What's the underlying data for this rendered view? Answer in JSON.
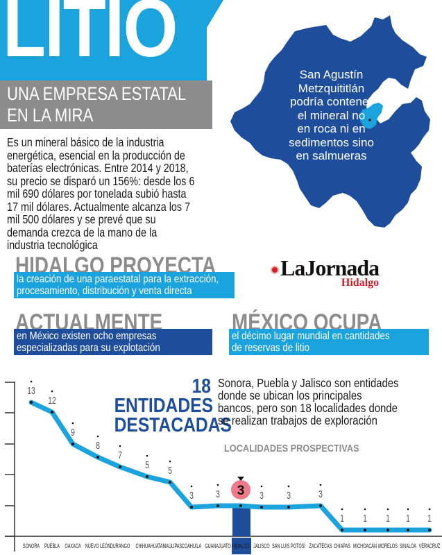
{
  "header": {
    "title": "LITIO",
    "subtitle_line1": "UNA EMPRESA ESTATAL",
    "subtitle_line2": "EN LA MIRA",
    "colors": {
      "title_bg": "#1aa3dc",
      "subtitle_bg": "#8c8c8d"
    }
  },
  "intro": {
    "text": "Es un mineral básico de la industria energética, esencial en la producción de baterías electrónicas. Entre 2014 y 2018, su precio se disparó un 156%: desde los 6 mil 690 dólares por tonelada subió hasta 17 mil dólares. Actualmente alcanza los 7 mil 500 dólares y se prevé que su demanda crezca de la mano de la industria tecnológica"
  },
  "map": {
    "region": "Hidalgo",
    "highlight": "San Agustín Metzquititlán",
    "caption_lines": [
      "San Agustín",
      "Metzquititlán",
      "podría contener",
      "el mineral no",
      "en roca ni en",
      "sedimentos sino",
      "en salmueras"
    ],
    "colors": {
      "state": "#1e4d9b",
      "highlight": "#1aa3dc"
    }
  },
  "facts": [
    {
      "heading": "HIDALGO PROYECTA",
      "line1": "la creación de una paraestatal para la extracción,",
      "line2": "procesamiento, distribución y venta directa",
      "color": "#1aa3dc"
    },
    {
      "heading": "ACTUALMENTE",
      "line1": "en México existen ocho empresas",
      "line2": "especializadas para su explotación",
      "color": "#1e4d9b"
    },
    {
      "heading": "MÉXICO OCUPA",
      "line1": "el décimo lugar mundial en cantidades",
      "line2": "de reservas de litio",
      "color": "#1aa3dc"
    }
  ],
  "logo": {
    "main": "LaJornada",
    "sub": "Hidalgo"
  },
  "chart_section": {
    "title_line1": "18 ENTIDADES",
    "title_line2": "DESTACADAS",
    "description_lines": [
      "Sonora, Puebla y Jalisco son entidades",
      "donde se ubican los principales",
      "bancos, pero son 18 localidades donde",
      "se realizan trabajos de exploración"
    ],
    "subtitle": "LOCALIDADES PROSPECTIVAS",
    "highlight_value": "3"
  },
  "chart_data": {
    "type": "line",
    "title": "18 ENTIDADES DESTACADAS",
    "subtitle": "LOCALIDADES PROSPECTIVAS",
    "xlabel": "",
    "ylabel": "",
    "categories": [
      "Sonora",
      "Puebla",
      "Oaxaca",
      "Nuevo León",
      "Durango",
      "Chihuahua",
      "Tamaulipas",
      "Coahuila",
      "Guanajuato",
      "Hidalgo",
      "Jalisco",
      "San Luis Potosí",
      "Zacatecas",
      "Chiapas",
      "Michoacán",
      "Morelos",
      "Sinaloa",
      "Veracruz"
    ],
    "values": [
      13,
      12,
      9,
      8,
      7,
      5,
      5,
      3,
      3,
      3,
      3,
      3,
      3,
      1,
      1,
      1,
      1,
      1
    ],
    "highlighted_category": "Hidalgo",
    "grid": false,
    "y_ticks_unlabeled": 5,
    "colors": {
      "line": "#1aa3dc",
      "highlight_bar": "#1e4d9b",
      "highlight_marker": "#f07a8a"
    }
  }
}
